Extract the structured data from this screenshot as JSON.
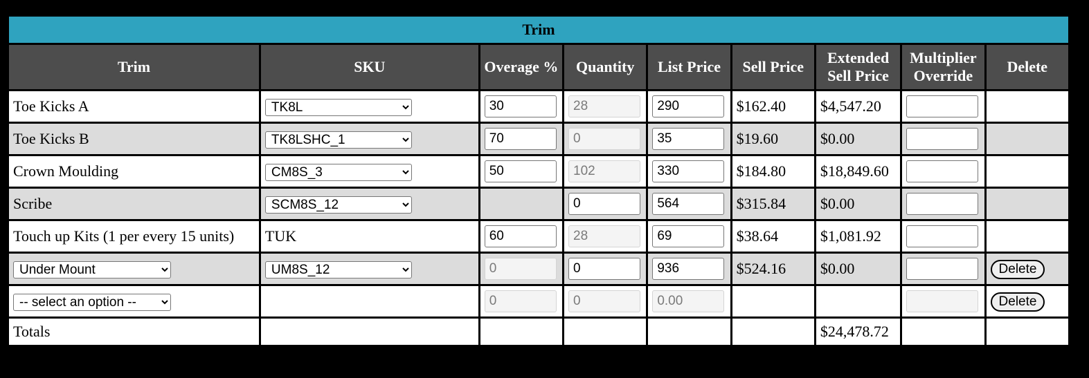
{
  "title": "Trim",
  "headers": {
    "trim": "Trim",
    "sku": "SKU",
    "overage": "Overage %",
    "quantity": "Quantity",
    "list_price": "List Price",
    "sell_price": "Sell Price",
    "extended": "Extended Sell Price",
    "multiplier": "Multiplier Override",
    "delete": "Delete"
  },
  "rows": [
    {
      "trim": "Toe Kicks A",
      "sku": "TK8L",
      "overage": "30",
      "quantity": "28",
      "list_price": "290",
      "sell_price": "$162.40",
      "extended": "$4,547.20",
      "multiplier": ""
    },
    {
      "trim": "Toe Kicks B",
      "sku": "TK8LSHC_1",
      "overage": "70",
      "quantity": "0",
      "list_price": "35",
      "sell_price": "$19.60",
      "extended": "$0.00",
      "multiplier": ""
    },
    {
      "trim": "Crown Moulding",
      "sku": "CM8S_3",
      "overage": "50",
      "quantity": "102",
      "list_price": "330",
      "sell_price": "$184.80",
      "extended": "$18,849.60",
      "multiplier": ""
    },
    {
      "trim": "Scribe",
      "sku": "SCM8S_12",
      "quantity": "0",
      "list_price": "564",
      "sell_price": "$315.84",
      "extended": "$0.00",
      "multiplier": ""
    },
    {
      "trim": "Touch up Kits (1 per every 15 units)",
      "sku": "TUK",
      "overage": "60",
      "quantity": "28",
      "list_price": "69",
      "sell_price": "$38.64",
      "extended": "$1,081.92",
      "multiplier": ""
    },
    {
      "trim": "Under Mount",
      "sku": "UM8S_12",
      "overage": "0",
      "quantity": "0",
      "list_price": "936",
      "sell_price": "$524.16",
      "extended": "$0.00",
      "multiplier": "",
      "delete": "Delete"
    },
    {
      "trim": "-- select an option --",
      "overage": "0",
      "quantity": "0",
      "list_price": "0.00",
      "multiplier": "",
      "delete": "Delete"
    }
  ],
  "totals": {
    "label": "Totals",
    "extended": "$24,478.72"
  }
}
